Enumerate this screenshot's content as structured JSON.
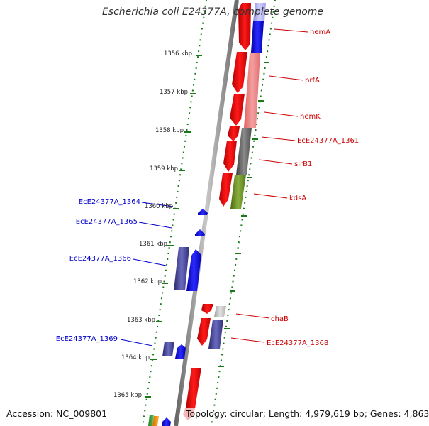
{
  "title": "Escherichia coli E24377A, complete genome",
  "footer": {
    "accession": "Accession: NC_009801",
    "summary": "Topology: circular; Length: 4,979,619 bp; Genes: 4,863"
  },
  "colors": {
    "forward_label": "#cc0000",
    "reverse_label": "#0000cc",
    "backbone": "#888888",
    "ruler": "#1a7a1a"
  },
  "ticks": [
    {
      "label": "1356 kbp"
    },
    {
      "label": "1357 kbp"
    },
    {
      "label": "1358 kbp"
    },
    {
      "label": "1359 kbp"
    },
    {
      "label": "1360 kbp"
    },
    {
      "label": "1361 kbp"
    },
    {
      "label": "1362 kbp"
    },
    {
      "label": "1363 kbp"
    },
    {
      "label": "1364 kbp"
    },
    {
      "label": "1365 kbp"
    }
  ],
  "gene_labels": [
    {
      "text": "hemA",
      "strand": "forward"
    },
    {
      "text": "prfA",
      "strand": "forward"
    },
    {
      "text": "hemK",
      "strand": "forward"
    },
    {
      "text": "EcE24377A_1361",
      "strand": "forward"
    },
    {
      "text": "sirB1",
      "strand": "forward"
    },
    {
      "text": "kdsA",
      "strand": "forward"
    },
    {
      "text": "chaB",
      "strand": "forward"
    },
    {
      "text": "EcE24377A_1368",
      "strand": "forward"
    },
    {
      "text": "EcE24377A_1364",
      "strand": "reverse"
    },
    {
      "text": "EcE24377A_1365",
      "strand": "reverse"
    },
    {
      "text": "EcE24377A_1366",
      "strand": "reverse"
    },
    {
      "text": "EcE24377A_1369",
      "strand": "reverse"
    }
  ]
}
